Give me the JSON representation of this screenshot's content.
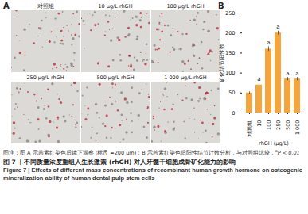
{
  "panel_a": {
    "label": "A",
    "images": [
      "对照组",
      "10 μg/L rhGH",
      "100 μg/L rhGH",
      "250 μg/L rhGH",
      "500 μg/L rhGH",
      "1 000 μg/L rhGH"
    ]
  },
  "chart_data": {
    "type": "bar",
    "panel_label": "B",
    "categories": [
      "对照组",
      "10",
      "100",
      "250",
      "500",
      "1 000"
    ],
    "values": [
      50,
      70,
      160,
      200,
      85,
      85
    ],
    "errors": [
      3,
      4,
      6,
      5,
      4,
      4
    ],
    "annotations": [
      null,
      "a",
      "a",
      "a",
      "a",
      "a"
    ],
    "color": "#f5a53c",
    "xlabel": "rhGH (μg/L)",
    "ylabel": "矿化结节阳性数",
    "ylim": [
      0,
      250
    ],
    "yticks": [
      0,
      50,
      100,
      150,
      200,
      250
    ]
  },
  "caption": {
    "note": "图注：图 A 示茜素红染色后镜下观察 (标尺 =200 μm)；B 示茜素红染色后阳性结节计数分析，与对照组比较，",
    "note_sup": "a",
    "note_end": "P < 0.01",
    "title_cn": "图 7 丨不同质量浓度重组人生长激素 (rhGH) 对人牙髓干细胞成骨矿化能力的影响",
    "title_en": "Figure 7 | Effects of different mass concentrations of recombinant human growth hormone on osteogenic mineralization ability of human dental pulp stem cells"
  }
}
